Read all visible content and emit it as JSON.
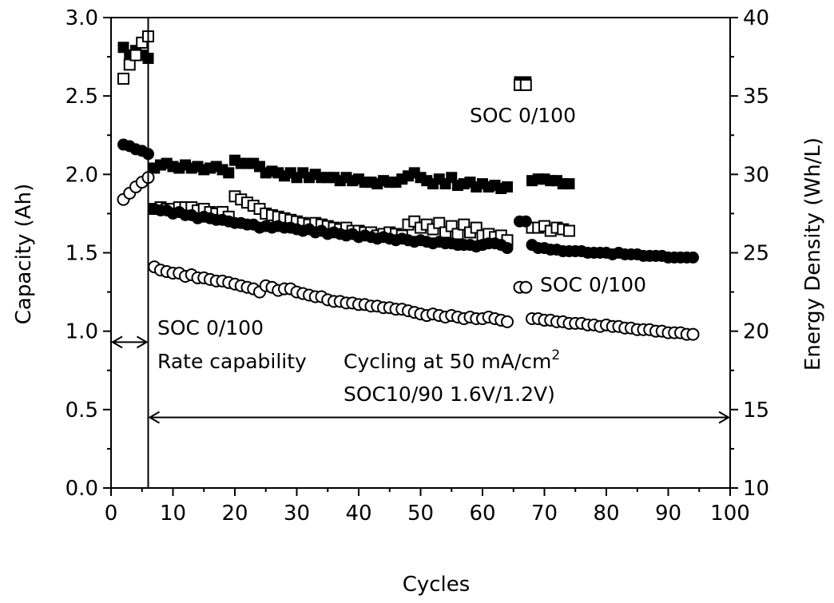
{
  "chart_data": {
    "type": "scatter",
    "xlabel": "Cycles",
    "ylabel_left": "Capacity (Ah)",
    "ylabel_right": "Energy Density (Wh/L)",
    "xlim": [
      0,
      100
    ],
    "ylim_left": [
      0.0,
      3.0
    ],
    "ylim_right": [
      10,
      40
    ],
    "x_ticks": [
      "0",
      "10",
      "20",
      "30",
      "40",
      "50",
      "60",
      "70",
      "80",
      "90",
      "100"
    ],
    "y_ticks_left": [
      "0.0",
      "0.5",
      "1.0",
      "1.5",
      "2.0",
      "2.5",
      "3.0"
    ],
    "y_ticks_right": [
      "10",
      "15",
      "20",
      "25",
      "30",
      "35",
      "40"
    ],
    "grid": false,
    "legend": "none",
    "divider_cycle": 6,
    "annotations": {
      "phase1_line1": "SOC 0/100",
      "phase1_line2": "Rate capability",
      "phase2_line1": "Cycling at 50 mA/cm",
      "phase2_sup": "2",
      "phase2_line2": "SOC10/90 1.6V/1.2V)",
      "label_upper": "SOC 0/100",
      "label_lower": "SOC 0/100"
    },
    "series": [
      {
        "marker": "filled-square",
        "axis": "right",
        "x": [
          2,
          3,
          4,
          5,
          6,
          7,
          8,
          9,
          10,
          11,
          12,
          13,
          14,
          15,
          16,
          17,
          18,
          19,
          20,
          21,
          22,
          23,
          24,
          25,
          26,
          27,
          28,
          29,
          30,
          31,
          32,
          33,
          34,
          35,
          36,
          37,
          38,
          39,
          40,
          41,
          42,
          43,
          44,
          45,
          46,
          47,
          48,
          49,
          50,
          51,
          52,
          53,
          54,
          55,
          56,
          57,
          58,
          59,
          60,
          61,
          62,
          63,
          64,
          66,
          67,
          68,
          69,
          70,
          71,
          72,
          73,
          74
        ],
        "values": [
          38.1,
          37.6,
          37.9,
          37.6,
          37.4,
          30.4,
          30.6,
          30.7,
          30.5,
          30.4,
          30.6,
          30.4,
          30.5,
          30.3,
          30.4,
          30.5,
          30.3,
          30.1,
          30.9,
          30.7,
          30.7,
          30.7,
          30.5,
          30.1,
          30.2,
          30.1,
          29.9,
          30.1,
          29.8,
          30.1,
          29.8,
          30.0,
          29.8,
          29.8,
          29.8,
          29.6,
          29.8,
          29.6,
          29.7,
          29.5,
          29.5,
          29.4,
          29.6,
          29.5,
          29.5,
          29.7,
          29.9,
          30.1,
          29.8,
          29.6,
          29.4,
          29.7,
          29.4,
          29.8,
          29.3,
          29.4,
          29.5,
          29.2,
          29.4,
          29.2,
          29.3,
          29.1,
          29.2,
          35.9,
          35.9,
          29.6,
          29.7,
          29.7,
          29.6,
          29.6,
          29.4,
          29.4
        ]
      },
      {
        "marker": "open-square",
        "axis": "right",
        "x": [
          2,
          3,
          4,
          5,
          6,
          7,
          8,
          9,
          10,
          11,
          12,
          13,
          14,
          15,
          16,
          17,
          18,
          19,
          20,
          21,
          22,
          23,
          24,
          25,
          26,
          27,
          28,
          29,
          30,
          31,
          32,
          33,
          34,
          35,
          36,
          37,
          38,
          39,
          40,
          41,
          42,
          43,
          44,
          45,
          46,
          47,
          48,
          49,
          50,
          51,
          52,
          53,
          54,
          55,
          56,
          57,
          58,
          59,
          60,
          61,
          62,
          63,
          64,
          66,
          67,
          68,
          69,
          70,
          71,
          72,
          73,
          74
        ],
        "values": [
          36.1,
          37.0,
          37.6,
          38.4,
          38.8,
          27.8,
          27.9,
          27.8,
          27.8,
          27.9,
          27.9,
          27.9,
          27.7,
          27.8,
          27.6,
          27.5,
          27.6,
          27.3,
          28.6,
          28.4,
          28.2,
          28.0,
          27.8,
          27.5,
          27.4,
          27.3,
          27.2,
          27.1,
          27.0,
          26.9,
          26.8,
          26.9,
          26.8,
          26.7,
          26.6,
          26.5,
          26.6,
          26.4,
          26.4,
          26.3,
          26.3,
          26.1,
          26.2,
          26.3,
          26.2,
          26.1,
          26.8,
          27.0,
          26.6,
          26.8,
          26.5,
          26.9,
          26.3,
          26.7,
          26.2,
          26.8,
          26.3,
          26.6,
          26.1,
          26.2,
          26.0,
          26.1,
          25.8,
          35.7,
          35.7,
          26.6,
          26.6,
          26.7,
          26.4,
          26.6,
          26.5,
          26.4
        ]
      },
      {
        "marker": "filled-circle",
        "axis": "left",
        "x": [
          2,
          3,
          4,
          5,
          6,
          7,
          8,
          9,
          10,
          11,
          12,
          13,
          14,
          15,
          16,
          17,
          18,
          19,
          20,
          21,
          22,
          23,
          24,
          25,
          26,
          27,
          28,
          29,
          30,
          31,
          32,
          33,
          34,
          35,
          36,
          37,
          38,
          39,
          40,
          41,
          42,
          43,
          44,
          45,
          46,
          47,
          48,
          49,
          50,
          51,
          52,
          53,
          54,
          55,
          56,
          57,
          58,
          59,
          60,
          61,
          62,
          63,
          64,
          66,
          67,
          68,
          69,
          70,
          71,
          72,
          73,
          74,
          75,
          76,
          77,
          78,
          79,
          80,
          81,
          82,
          83,
          84,
          85,
          86,
          87,
          88,
          89,
          90,
          91,
          92,
          93,
          94
        ],
        "values": [
          2.19,
          2.18,
          2.16,
          2.15,
          2.13,
          1.78,
          1.77,
          1.77,
          1.75,
          1.76,
          1.74,
          1.74,
          1.72,
          1.73,
          1.72,
          1.71,
          1.71,
          1.7,
          1.69,
          1.69,
          1.68,
          1.68,
          1.66,
          1.67,
          1.66,
          1.67,
          1.66,
          1.66,
          1.65,
          1.64,
          1.65,
          1.63,
          1.64,
          1.62,
          1.63,
          1.62,
          1.61,
          1.62,
          1.6,
          1.61,
          1.6,
          1.59,
          1.6,
          1.59,
          1.58,
          1.59,
          1.58,
          1.57,
          1.58,
          1.57,
          1.56,
          1.57,
          1.56,
          1.56,
          1.55,
          1.55,
          1.55,
          1.54,
          1.55,
          1.56,
          1.56,
          1.55,
          1.53,
          1.7,
          1.7,
          1.55,
          1.53,
          1.53,
          1.52,
          1.52,
          1.51,
          1.51,
          1.51,
          1.51,
          1.5,
          1.5,
          1.5,
          1.5,
          1.49,
          1.5,
          1.49,
          1.49,
          1.49,
          1.48,
          1.48,
          1.48,
          1.48,
          1.47,
          1.47,
          1.47,
          1.47,
          1.47
        ]
      },
      {
        "marker": "open-circle",
        "axis": "left",
        "x": [
          2,
          3,
          4,
          5,
          6,
          7,
          8,
          9,
          10,
          11,
          12,
          13,
          14,
          15,
          16,
          17,
          18,
          19,
          20,
          21,
          22,
          23,
          24,
          25,
          26,
          27,
          28,
          29,
          30,
          31,
          32,
          33,
          34,
          35,
          36,
          37,
          38,
          39,
          40,
          41,
          42,
          43,
          44,
          45,
          46,
          47,
          48,
          49,
          50,
          51,
          52,
          53,
          54,
          55,
          56,
          57,
          58,
          59,
          60,
          61,
          62,
          63,
          64,
          66,
          67,
          68,
          69,
          70,
          71,
          72,
          73,
          74,
          75,
          76,
          77,
          78,
          79,
          80,
          81,
          82,
          83,
          84,
          85,
          86,
          87,
          88,
          89,
          90,
          91,
          92,
          93,
          94
        ],
        "values": [
          1.84,
          1.88,
          1.92,
          1.95,
          1.98,
          1.41,
          1.39,
          1.38,
          1.37,
          1.37,
          1.35,
          1.36,
          1.34,
          1.34,
          1.33,
          1.32,
          1.32,
          1.31,
          1.3,
          1.29,
          1.28,
          1.27,
          1.25,
          1.29,
          1.28,
          1.26,
          1.27,
          1.27,
          1.25,
          1.24,
          1.23,
          1.22,
          1.22,
          1.2,
          1.19,
          1.19,
          1.18,
          1.18,
          1.17,
          1.17,
          1.16,
          1.16,
          1.15,
          1.15,
          1.14,
          1.14,
          1.13,
          1.12,
          1.11,
          1.1,
          1.11,
          1.1,
          1.09,
          1.1,
          1.09,
          1.08,
          1.09,
          1.08,
          1.08,
          1.09,
          1.08,
          1.07,
          1.06,
          1.28,
          1.28,
          1.08,
          1.08,
          1.07,
          1.07,
          1.06,
          1.06,
          1.05,
          1.05,
          1.05,
          1.04,
          1.04,
          1.03,
          1.04,
          1.03,
          1.03,
          1.02,
          1.02,
          1.01,
          1.01,
          1.01,
          1.0,
          1.0,
          0.99,
          0.99,
          0.99,
          0.98,
          0.98
        ]
      }
    ]
  }
}
